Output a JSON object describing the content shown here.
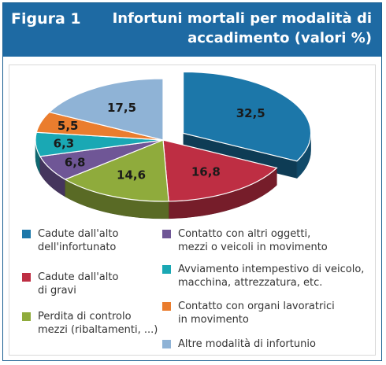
{
  "header": {
    "figure_label": "Figura 1",
    "title": "Infortuni mortali per modalità di accadimento (valori %)"
  },
  "chart_data": {
    "type": "pie",
    "title": "Infortuni mortali per modalità di accadimento (valori %)",
    "categories": [
      "Cadute dall'alto dell'infortunato",
      "Cadute dall'alto di gravi",
      "Perdita di controlo mezzi (ribaltamenti, ...)",
      "Contatto con altri oggetti, mezzi o veicoli in movimento",
      "Avviamento intempestivo di veicolo, macchina, attrezzatura, etc.",
      "Contatto con organi lavoratrici in movimento",
      "Altre modalità di infortunio"
    ],
    "values": [
      32.5,
      16.8,
      14.6,
      6.8,
      6.3,
      5.5,
      17.5
    ],
    "value_labels": [
      "32,5",
      "16,8",
      "14,6",
      "6,8",
      "6,3",
      "5,5",
      "17,5"
    ],
    "colors": [
      "#1c77a9",
      "#be2e43",
      "#8fab3c",
      "#6f5696",
      "#1aa8b4",
      "#ea7d2e",
      "#8fb3d6"
    ],
    "exploded": [
      "Cadute dall'alto dell'infortunato"
    ],
    "legend_position": "bottom"
  },
  "legend": [
    {
      "label": "Cadute dall'alto\ndell'infortunato",
      "color": "#1c77a9"
    },
    {
      "label": "Cadute dall'alto\ndi gravi",
      "color": "#be2e43"
    },
    {
      "label": "Perdita di controlo\nmezzi (ribaltamenti, ...)",
      "color": "#8fab3c"
    },
    {
      "label": "Contatto con altri oggetti,\nmezzi o veicoli in movimento",
      "color": "#6f5696"
    },
    {
      "label": "Avviamento intempestivo di veicolo,\nmacchina, attrezzatura, etc.",
      "color": "#1aa8b4"
    },
    {
      "label": "Contatto con organi lavoratrici\nin movimento",
      "color": "#ea7d2e"
    },
    {
      "label": "Altre modalità di infortunio",
      "color": "#8fb3d6"
    }
  ]
}
